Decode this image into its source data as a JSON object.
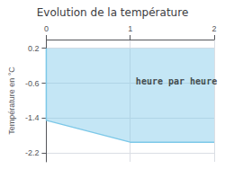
{
  "chart_data": {
    "type": "line",
    "title": "Evolution de la température",
    "ylabel": "Température en °C",
    "x": [
      0,
      0.0,
      1.0,
      1.0,
      2.0
    ],
    "series": [
      {
        "color": "#7cc8e8",
        "values": [
          0.2,
          -1.45,
          -1.95,
          -1.95,
          -1.95
        ],
        "fill_top": [
          0.2,
          0.2,
          0.2,
          0.2,
          0.2
        ]
      }
    ],
    "xlim": [
      0,
      2
    ],
    "xticks": [
      0,
      1,
      2
    ],
    "ylim": [
      -2.4,
      0.4
    ],
    "yticks": [
      0.2,
      -0.6,
      -1.4,
      -2.2
    ],
    "annotations": [
      {
        "text": "heure par heure",
        "x": 1.55,
        "y": -0.55
      }
    ],
    "grid": true
  }
}
